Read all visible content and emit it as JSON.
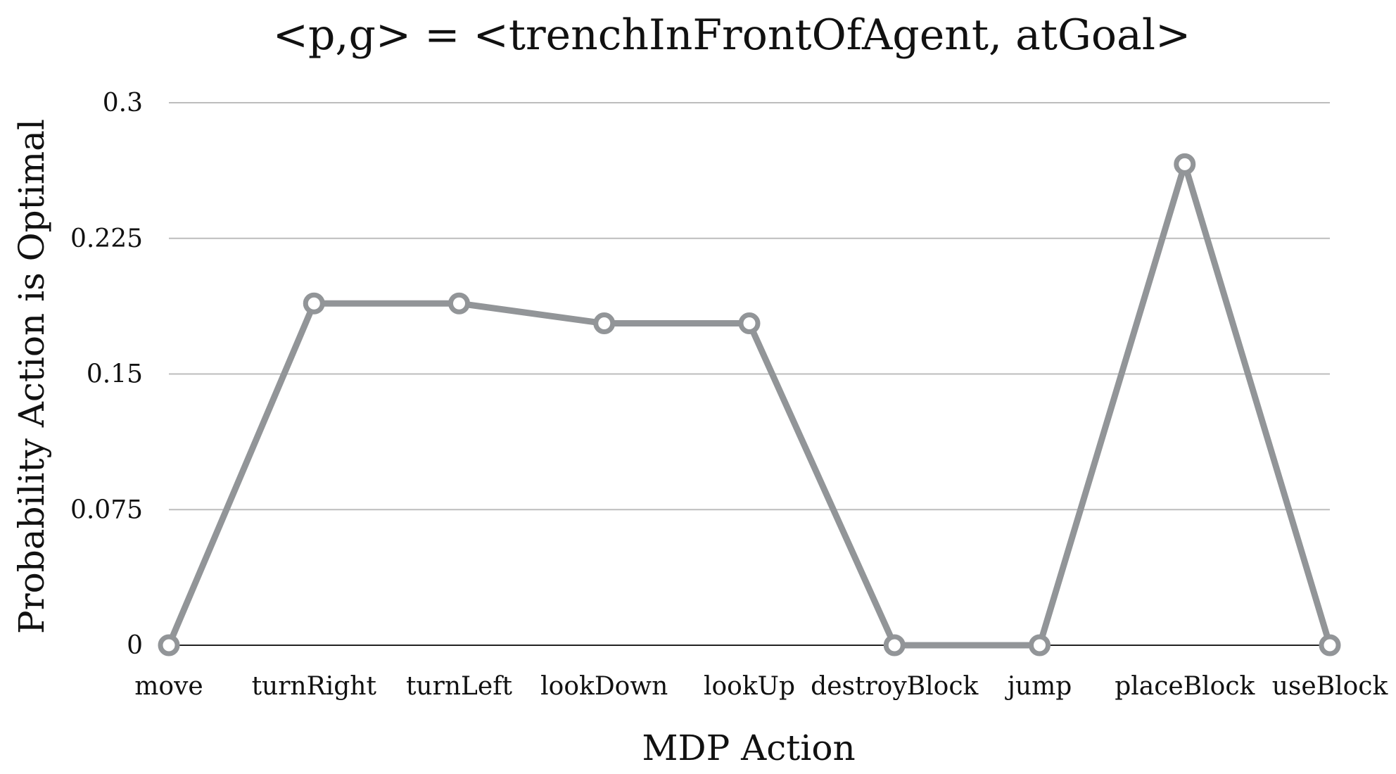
{
  "chart_data": {
    "type": "line",
    "title": "<p,g> = <trenchInFrontOfAgent, atGoal>",
    "xlabel": "MDP Action",
    "ylabel": "Probability Action is Optimal",
    "categories": [
      "move",
      "turnRight",
      "turnLeft",
      "lookDown",
      "lookUp",
      "destroyBlock",
      "jump",
      "placeBlock",
      "useBlock"
    ],
    "series": [
      {
        "values": [
          0,
          0.189,
          0.189,
          0.178,
          0.178,
          0,
          0,
          0.266,
          0
        ]
      }
    ],
    "yticks": [
      0,
      0.075,
      0.15,
      0.225,
      0.3
    ],
    "ytick_labels": [
      "0",
      "0.075",
      "0.15",
      "0.225",
      "0.3"
    ],
    "ylim": [
      0,
      0.3
    ],
    "grid": true,
    "legend": "none",
    "colors": {
      "series": "#929598",
      "grid": "#bdbdbd"
    }
  }
}
